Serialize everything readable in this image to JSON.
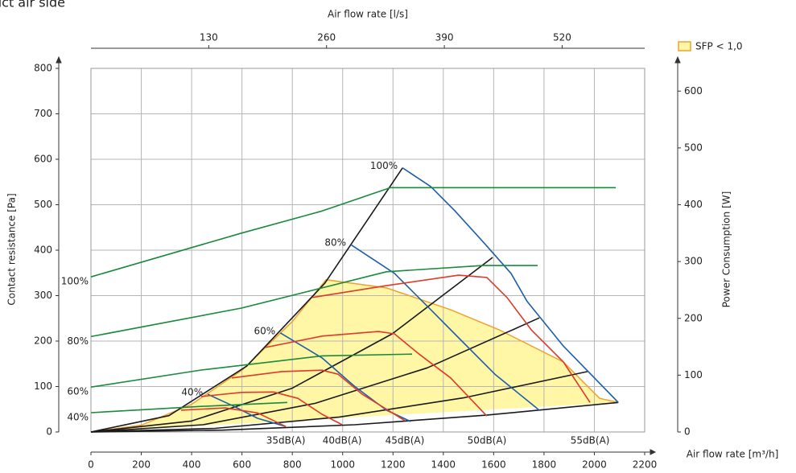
{
  "chart_data": {
    "type": "line",
    "title": "uct air side",
    "x_label": "Air flow rate [m³/h]",
    "x2_label": "Air flow rate [l/s]",
    "y_label": "Contact resistance [Pa]",
    "y2_label": "Power Consumption [W]",
    "xlim": [
      0,
      2200
    ],
    "xticks": [
      0,
      200,
      400,
      600,
      800,
      1000,
      1200,
      1400,
      1600,
      1800,
      2000,
      2200
    ],
    "x2lim": [
      0,
      611.1
    ],
    "x2ticks": [
      130,
      260,
      390,
      520
    ],
    "ylim": [
      0,
      800
    ],
    "yticks": [
      0,
      100,
      200,
      300,
      400,
      500,
      600,
      700,
      800
    ],
    "y2lim": [
      0,
      640
    ],
    "y2ticks": [
      0,
      100,
      200,
      300,
      400,
      500,
      600
    ],
    "grid": true,
    "area": {
      "name": "SFP < 1,0",
      "color": "#fff6a6",
      "edge_color": "#f0a030",
      "x": [
        0,
        200,
        400,
        600,
        800,
        934,
        1174,
        1429,
        1621,
        1877,
        2021,
        2095
      ],
      "values": [
        0,
        15,
        61,
        136,
        243,
        335,
        317,
        269,
        225,
        154,
        74,
        65
      ]
    },
    "series": [
      {
        "color": "#1a1a1a",
        "x": [
          0,
          310,
          619,
          929,
          1238
        ],
        "values": [
          0,
          36,
          145,
          327,
          581
        ]
      },
      {
        "color": "#1a1a1a",
        "x": [
          0,
          399,
          798,
          1197,
          1596
        ],
        "values": [
          0,
          24,
          96,
          216,
          384
        ]
      },
      {
        "color": "#1a1a1a",
        "x": [
          0,
          445,
          891,
          1336,
          1781
        ],
        "values": [
          0,
          16,
          63,
          141,
          251
        ]
      },
      {
        "color": "#1a1a1a",
        "x": [
          0,
          493,
          987,
          1480,
          1973
        ],
        "values": [
          0,
          8,
          33,
          75,
          133
        ]
      },
      {
        "color": "#1a1a1a",
        "x": [
          0,
          524,
          1048,
          1571,
          2095
        ],
        "values": [
          0,
          4,
          16,
          37,
          65
        ]
      },
      {
        "label": "100%",
        "group": "fan",
        "color": "#1f5fa8",
        "x": [
          1238,
          1350,
          1445,
          1557,
          1669,
          1733,
          1877,
          2095
        ],
        "values": [
          581,
          540,
          487,
          419,
          349,
          287,
          189,
          65
        ]
      },
      {
        "label": "80%",
        "group": "fan",
        "color": "#1f5fa8",
        "x": [
          1033,
          1206,
          1334,
          1461,
          1605,
          1781
        ],
        "values": [
          412,
          349,
          278,
          207,
          127,
          48
        ]
      },
      {
        "label": "60%",
        "group": "fan",
        "color": "#1f5fa8",
        "x": [
          752,
          918,
          1046,
          1174,
          1270
        ],
        "values": [
          218,
          163,
          101,
          48,
          23
        ]
      },
      {
        "label": "40%",
        "group": "fan",
        "color": "#1f5fa8",
        "x": [
          464,
          566,
          662,
          774
        ],
        "values": [
          83,
          57,
          30,
          12
        ]
      },
      {
        "label": "100%",
        "group": "power",
        "axis": "y2",
        "color": "#1a8a3c",
        "x": [
          0,
          598,
          918,
          1190,
          1334,
          2085
        ],
        "values": [
          273,
          350,
          389,
          430,
          430,
          430
        ]
      },
      {
        "label": "80%",
        "group": "power",
        "axis": "y2",
        "color": "#1a8a3c",
        "x": [
          0,
          598,
          1174,
          1557,
          1775
        ],
        "values": [
          168,
          218,
          282,
          293,
          293
        ]
      },
      {
        "label": "60%",
        "group": "power",
        "axis": "y2",
        "color": "#1a8a3c",
        "x": [
          0,
          438,
          918,
          1276
        ],
        "values": [
          79,
          109,
          134,
          137
        ]
      },
      {
        "label": "40%",
        "group": "power",
        "axis": "y2",
        "color": "#1a8a3c",
        "x": [
          0,
          438,
          780
        ],
        "values": [
          34,
          45,
          52
        ]
      },
      {
        "label": "35dB(A)",
        "group": "sound",
        "color": "#e03a2a",
        "x": [
          358,
          534,
          662,
          774
        ],
        "values": [
          48,
          53,
          42,
          12
        ]
      },
      {
        "label": "40dB(A)",
        "group": "sound",
        "color": "#e03a2a",
        "x": [
          438,
          598,
          726,
          822,
          918,
          998
        ],
        "values": [
          78,
          87,
          88,
          74,
          39,
          16
        ]
      },
      {
        "label": "45dB(A)",
        "group": "sound",
        "color": "#e03a2a",
        "x": [
          560,
          758,
          918,
          982,
          1078,
          1247
        ],
        "values": [
          119,
          133,
          136,
          127,
          83,
          25
        ]
      },
      {
        "label": "50dB(A)",
        "group": "sound",
        "color": "#e03a2a",
        "x": [
          694,
          918,
          1142,
          1206,
          1302,
          1429,
          1573
        ],
        "values": [
          186,
          211,
          221,
          216,
          172,
          119,
          35
        ]
      },
      {
        "label": "55dB(A)",
        "group": "sound",
        "color": "#e03a2a",
        "x": [
          879,
          1174,
          1461,
          1573,
          1653,
          1749,
          1877,
          1983
        ],
        "values": [
          296,
          322,
          345,
          340,
          296,
          225,
          154,
          65
        ]
      }
    ]
  }
}
